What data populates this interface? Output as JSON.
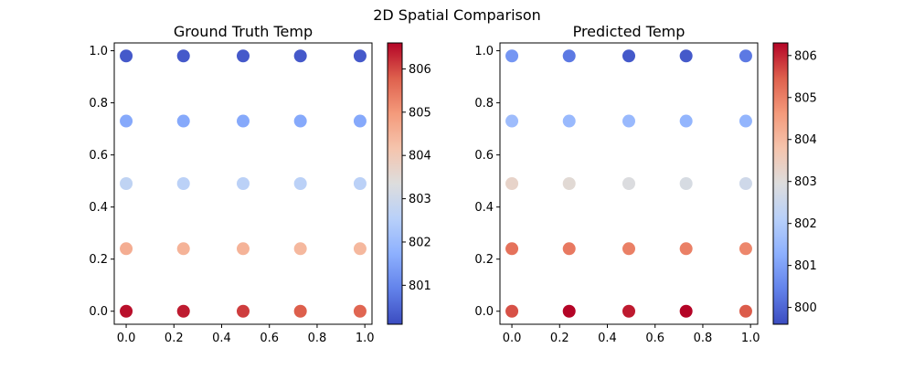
{
  "figure": {
    "title": "2D Spatial Comparison"
  },
  "chart_data": [
    {
      "type": "scatter",
      "title": "Ground Truth Temp",
      "xlabel": "",
      "ylabel": "",
      "xlim": [
        -0.05,
        1.03
      ],
      "ylim": [
        -0.05,
        1.03
      ],
      "xticks": [
        0.0,
        0.2,
        0.4,
        0.6,
        0.8,
        1.0
      ],
      "yticks": [
        0.0,
        0.2,
        0.4,
        0.6,
        0.8,
        1.0
      ],
      "xtick_labels": [
        "0.0",
        "0.2",
        "0.4",
        "0.6",
        "0.8",
        "1.0"
      ],
      "ytick_labels": [
        "0.0",
        "0.2",
        "0.4",
        "0.6",
        "0.8",
        "1.0"
      ],
      "colormap": "coolwarm",
      "colorbar": {
        "range": [
          800.1,
          806.6
        ],
        "ticks": [
          801,
          802,
          803,
          804,
          805,
          806
        ],
        "tick_labels": [
          "801",
          "802",
          "803",
          "804",
          "805",
          "806"
        ]
      },
      "grid": false,
      "points": [
        {
          "x": 0.0,
          "y": 0.0,
          "value": 806.5
        },
        {
          "x": 0.24,
          "y": 0.0,
          "value": 806.4
        },
        {
          "x": 0.49,
          "y": 0.0,
          "value": 806.1
        },
        {
          "x": 0.73,
          "y": 0.0,
          "value": 805.8
        },
        {
          "x": 0.98,
          "y": 0.0,
          "value": 805.7
        },
        {
          "x": 0.0,
          "y": 0.24,
          "value": 804.6
        },
        {
          "x": 0.24,
          "y": 0.24,
          "value": 804.5
        },
        {
          "x": 0.49,
          "y": 0.24,
          "value": 804.5
        },
        {
          "x": 0.73,
          "y": 0.24,
          "value": 804.4
        },
        {
          "x": 0.98,
          "y": 0.24,
          "value": 804.4
        },
        {
          "x": 0.0,
          "y": 0.49,
          "value": 802.7
        },
        {
          "x": 0.24,
          "y": 0.49,
          "value": 802.6
        },
        {
          "x": 0.49,
          "y": 0.49,
          "value": 802.6
        },
        {
          "x": 0.73,
          "y": 0.49,
          "value": 802.6
        },
        {
          "x": 0.98,
          "y": 0.49,
          "value": 802.6
        },
        {
          "x": 0.0,
          "y": 0.73,
          "value": 801.6
        },
        {
          "x": 0.24,
          "y": 0.73,
          "value": 801.6
        },
        {
          "x": 0.49,
          "y": 0.73,
          "value": 801.6
        },
        {
          "x": 0.73,
          "y": 0.73,
          "value": 801.6
        },
        {
          "x": 0.98,
          "y": 0.73,
          "value": 801.6
        },
        {
          "x": 0.0,
          "y": 0.98,
          "value": 800.3
        },
        {
          "x": 0.24,
          "y": 0.98,
          "value": 800.3
        },
        {
          "x": 0.49,
          "y": 0.98,
          "value": 800.3
        },
        {
          "x": 0.73,
          "y": 0.98,
          "value": 800.3
        },
        {
          "x": 0.98,
          "y": 0.98,
          "value": 800.3
        }
      ]
    },
    {
      "type": "scatter",
      "title": "Predicted Temp",
      "xlabel": "",
      "ylabel": "",
      "xlim": [
        -0.05,
        1.03
      ],
      "ylim": [
        -0.05,
        1.03
      ],
      "xticks": [
        0.0,
        0.2,
        0.4,
        0.6,
        0.8,
        1.0
      ],
      "yticks": [
        0.0,
        0.2,
        0.4,
        0.6,
        0.8,
        1.0
      ],
      "xtick_labels": [
        "0.0",
        "0.2",
        "0.4",
        "0.6",
        "0.8",
        "1.0"
      ],
      "ytick_labels": [
        "0.0",
        "0.2",
        "0.4",
        "0.6",
        "0.8",
        "1.0"
      ],
      "colormap": "coolwarm",
      "colorbar": {
        "range": [
          799.6,
          806.3
        ],
        "ticks": [
          800,
          801,
          802,
          803,
          804,
          805,
          806
        ],
        "tick_labels": [
          "800",
          "801",
          "802",
          "803",
          "804",
          "805",
          "806"
        ]
      },
      "grid": false,
      "points": [
        {
          "x": 0.0,
          "y": 0.0,
          "value": 805.6
        },
        {
          "x": 0.24,
          "y": 0.0,
          "value": 806.3
        },
        {
          "x": 0.49,
          "y": 0.0,
          "value": 806.1
        },
        {
          "x": 0.73,
          "y": 0.0,
          "value": 806.3
        },
        {
          "x": 0.98,
          "y": 0.0,
          "value": 805.5
        },
        {
          "x": 0.0,
          "y": 0.24,
          "value": 805.2
        },
        {
          "x": 0.24,
          "y": 0.24,
          "value": 805.1
        },
        {
          "x": 0.49,
          "y": 0.24,
          "value": 805.0
        },
        {
          "x": 0.73,
          "y": 0.24,
          "value": 805.0
        },
        {
          "x": 0.98,
          "y": 0.24,
          "value": 804.9
        },
        {
          "x": 0.0,
          "y": 0.49,
          "value": 803.3
        },
        {
          "x": 0.24,
          "y": 0.49,
          "value": 803.1
        },
        {
          "x": 0.49,
          "y": 0.49,
          "value": 802.9
        },
        {
          "x": 0.73,
          "y": 0.49,
          "value": 802.8
        },
        {
          "x": 0.98,
          "y": 0.49,
          "value": 802.6
        },
        {
          "x": 0.0,
          "y": 0.73,
          "value": 801.6
        },
        {
          "x": 0.24,
          "y": 0.73,
          "value": 801.5
        },
        {
          "x": 0.49,
          "y": 0.73,
          "value": 801.5
        },
        {
          "x": 0.73,
          "y": 0.73,
          "value": 801.4
        },
        {
          "x": 0.98,
          "y": 0.73,
          "value": 801.4
        },
        {
          "x": 0.0,
          "y": 0.98,
          "value": 800.8
        },
        {
          "x": 0.24,
          "y": 0.98,
          "value": 800.3
        },
        {
          "x": 0.49,
          "y": 0.98,
          "value": 799.8
        },
        {
          "x": 0.73,
          "y": 0.98,
          "value": 799.8
        },
        {
          "x": 0.98,
          "y": 0.98,
          "value": 800.3
        }
      ]
    }
  ]
}
